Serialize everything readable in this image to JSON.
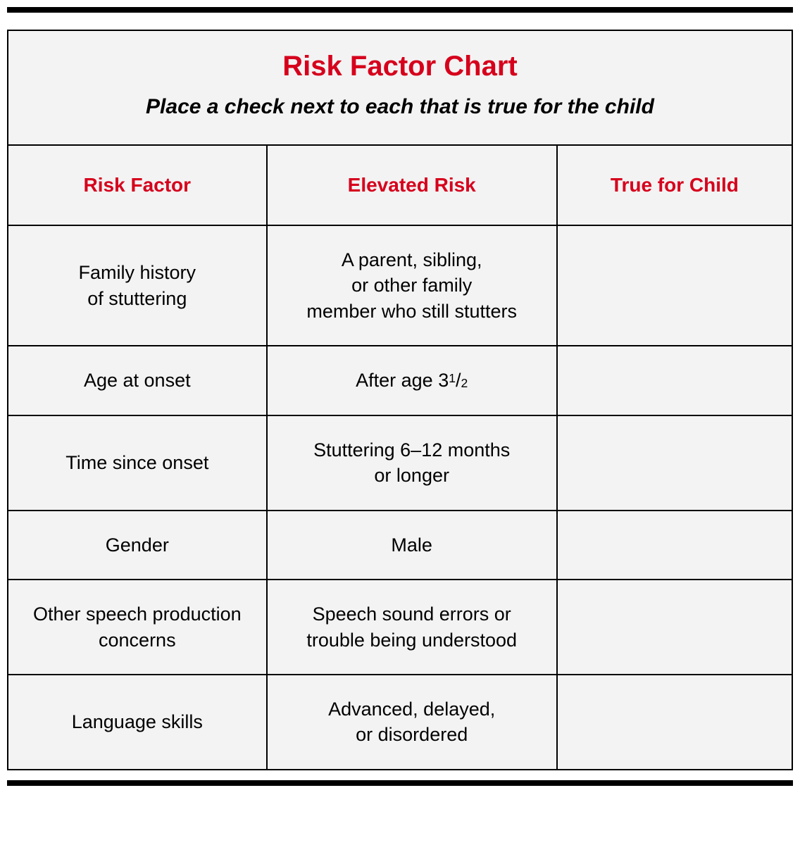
{
  "chart": {
    "title": "Risk Factor Chart",
    "subtitle": "Place a check next to each that is true for the child",
    "title_color": "#d6001c",
    "header_color": "#d6001c",
    "body_text_color": "#000000",
    "background_color": "#f3f3f3",
    "border_color": "#000000",
    "rule_color": "#000000",
    "columns": [
      "Risk Factor",
      "Elevated Risk",
      "True for Child"
    ],
    "rows": [
      {
        "factor": "Family history\nof stuttering",
        "risk": "A parent, sibling,\nor other family\nmember who still stutters",
        "check": ""
      },
      {
        "factor": "Age at onset",
        "risk": "After age 3½",
        "check": ""
      },
      {
        "factor": "Time since onset",
        "risk": "Stuttering 6–12 months\nor longer",
        "check": ""
      },
      {
        "factor": "Gender",
        "risk": "Male",
        "check": ""
      },
      {
        "factor": "Other speech production\nconcerns",
        "risk": "Speech sound errors or\ntrouble being understood",
        "check": ""
      },
      {
        "factor": "Language skills",
        "risk": "Advanced, delayed,\nor disordered",
        "check": ""
      }
    ]
  }
}
